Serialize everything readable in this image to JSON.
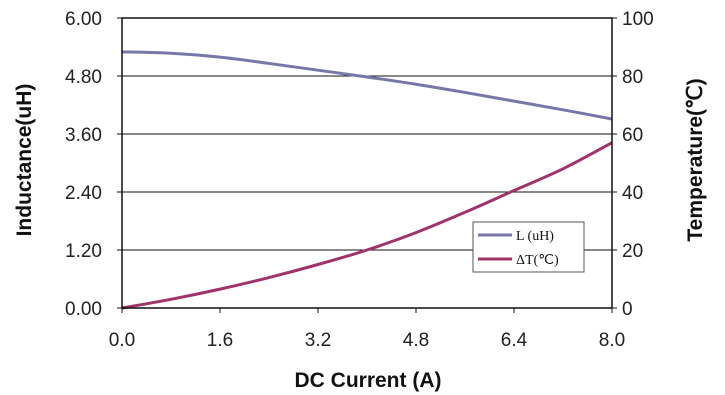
{
  "chart_data": {
    "type": "line",
    "xlabel": "DC Current (A)",
    "ylabel_left": "Inductance(uH)",
    "ylabel_right": "Temperature(℃)",
    "x_ticks": [
      "0.0",
      "1.6",
      "3.2",
      "4.8",
      "6.4",
      "8.0"
    ],
    "y_left_ticks": [
      "0.00",
      "1.20",
      "2.40",
      "3.60",
      "4.80",
      "6.00"
    ],
    "y_right_ticks": [
      "0",
      "20",
      "40",
      "60",
      "80",
      "100"
    ],
    "xlim": [
      0,
      8
    ],
    "ylim_left": [
      0,
      6
    ],
    "ylim_right": [
      0,
      100
    ],
    "grid": "horizontal",
    "legend_position": "bottom-right",
    "series": [
      {
        "name": "L (uH)",
        "axis": "left",
        "color": "#7777aa",
        "x": [
          0,
          0.8,
          1.6,
          2.4,
          3.2,
          4.0,
          4.8,
          5.6,
          6.4,
          7.2,
          8.0
        ],
        "y": [
          5.3,
          5.27,
          5.19,
          5.06,
          4.92,
          4.78,
          4.63,
          4.46,
          4.28,
          4.1,
          3.91
        ]
      },
      {
        "name": "ΔT(℃)",
        "axis": "right",
        "color": "#a0336a",
        "x": [
          0,
          0.8,
          1.6,
          2.4,
          3.2,
          4.0,
          4.8,
          5.6,
          6.4,
          7.2,
          8.0
        ],
        "y": [
          0,
          3,
          6.5,
          10.5,
          15,
          20,
          26,
          33,
          40.5,
          48,
          57
        ]
      }
    ]
  }
}
